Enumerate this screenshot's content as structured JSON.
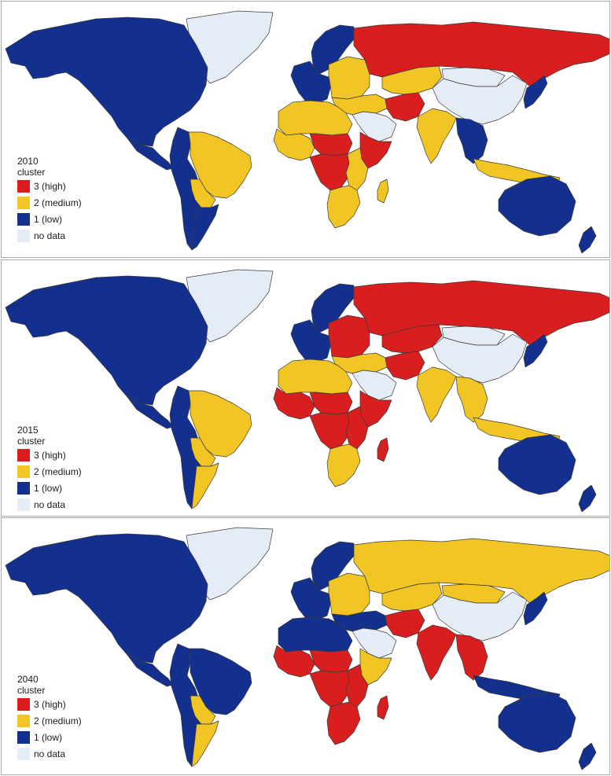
{
  "colors": {
    "high": "#d81e1e",
    "medium": "#f1c523",
    "low": "#13308e",
    "nodata": "#e6ecf6",
    "border": "#3a3a3a",
    "ocean": "#ffffff"
  },
  "legend_title": "cluster",
  "legend_items": [
    {
      "label": "3 (high)",
      "color": "#d81e1e"
    },
    {
      "label": "2 (medium)",
      "color": "#f1c523"
    },
    {
      "label": "1 (low)",
      "color": "#13308e"
    },
    {
      "label": "no data",
      "color": "#e6ecf6"
    }
  ],
  "maps": [
    {
      "year": "2010",
      "regions": {
        "north_america": "low",
        "greenland": "nodata",
        "central_america": "low",
        "south_america_west": "low",
        "south_america_brazil": "medium",
        "bolivia_paraguay": "medium",
        "southern_cone": "low",
        "western_europe": "low",
        "scandinavia": "low",
        "eastern_europe": "medium",
        "russia": "high",
        "central_asia": "medium",
        "middle_east": "medium",
        "arabia": "nodata",
        "iran_afghan": "high",
        "north_africa": "medium",
        "west_africa": "medium",
        "sahel": "high",
        "central_africa": "high",
        "east_africa": "medium",
        "horn_africa": "high",
        "southern_africa": "medium",
        "madagascar": "medium",
        "south_asia": "medium",
        "china": "nodata",
        "mongolia": "nodata",
        "se_asia": "low",
        "indonesia": "medium",
        "japan": "low",
        "australia": "low",
        "new_zealand": "low"
      }
    },
    {
      "year": "2015",
      "regions": {
        "north_america": "low",
        "greenland": "nodata",
        "central_america": "low",
        "south_america_west": "low",
        "south_america_brazil": "medium",
        "bolivia_paraguay": "medium",
        "southern_cone": "medium",
        "western_europe": "low",
        "scandinavia": "low",
        "eastern_europe": "high",
        "russia": "high",
        "central_asia": "high",
        "middle_east": "medium",
        "arabia": "nodata",
        "iran_afghan": "high",
        "north_africa": "medium",
        "west_africa": "high",
        "sahel": "high",
        "central_africa": "high",
        "east_africa": "high",
        "horn_africa": "high",
        "southern_africa": "medium",
        "madagascar": "high",
        "south_asia": "medium",
        "china": "nodata",
        "mongolia": "nodata",
        "se_asia": "medium",
        "indonesia": "medium",
        "japan": "low",
        "australia": "low",
        "new_zealand": "low"
      }
    },
    {
      "year": "2040",
      "regions": {
        "north_america": "low",
        "greenland": "nodata",
        "central_america": "low",
        "south_america_west": "low",
        "south_america_brazil": "low",
        "bolivia_paraguay": "medium",
        "southern_cone": "medium",
        "western_europe": "low",
        "scandinavia": "low",
        "eastern_europe": "medium",
        "russia": "medium",
        "central_asia": "medium",
        "middle_east": "low",
        "arabia": "nodata",
        "iran_afghan": "high",
        "north_africa": "low",
        "west_africa": "high",
        "sahel": "high",
        "central_africa": "high",
        "east_africa": "high",
        "horn_africa": "medium",
        "southern_africa": "high",
        "madagascar": "high",
        "south_asia": "high",
        "china": "nodata",
        "mongolia": "medium",
        "se_asia": "high",
        "indonesia": "low",
        "japan": "low",
        "australia": "low",
        "new_zealand": "low"
      }
    }
  ]
}
